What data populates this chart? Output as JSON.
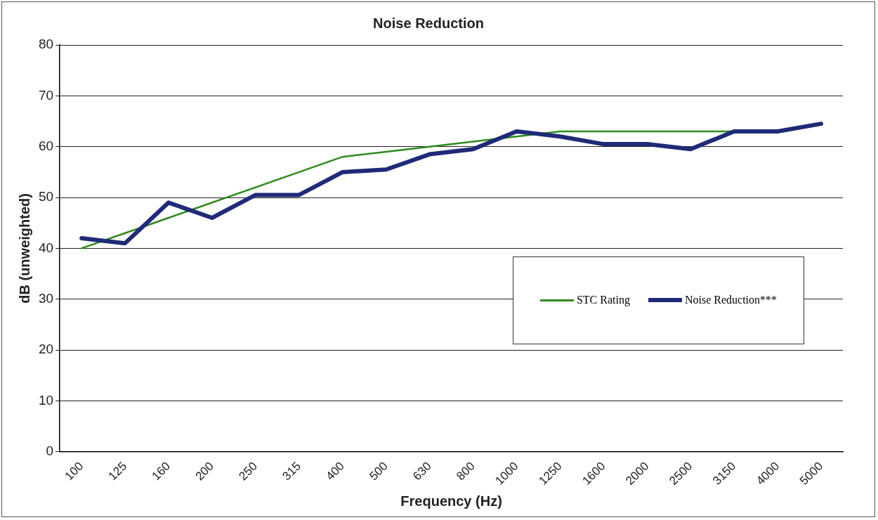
{
  "chart_data": {
    "type": "line",
    "title": "Noise Reduction",
    "xlabel": "Frequency (Hz)",
    "ylabel": "dB (unweighted)",
    "categories": [
      "100",
      "125",
      "160",
      "200",
      "250",
      "315",
      "400",
      "500",
      "630",
      "800",
      "1000",
      "1250",
      "1600",
      "2000",
      "2500",
      "3150",
      "4000",
      "5000"
    ],
    "series": [
      {
        "name": "STC Rating",
        "color": "#2e8b1e",
        "values": [
          40,
          43,
          46,
          49,
          52,
          55,
          58,
          59,
          60,
          61,
          62,
          63,
          63,
          63,
          63,
          63,
          null,
          null
        ]
      },
      {
        "name": "Noise Reduction***",
        "color": "#1f2a78",
        "values": [
          42,
          41,
          49,
          46,
          50.5,
          50.5,
          55,
          55.5,
          58.5,
          59.5,
          63,
          62,
          60.5,
          60.5,
          59.5,
          63,
          63,
          64.5
        ]
      }
    ],
    "ylim": [
      0,
      80
    ],
    "yticks": [
      0,
      10,
      20,
      30,
      40,
      50,
      60,
      70,
      80
    ],
    "grid": "y",
    "legend": "right",
    "marker": "none",
    "line_style": "solid"
  }
}
